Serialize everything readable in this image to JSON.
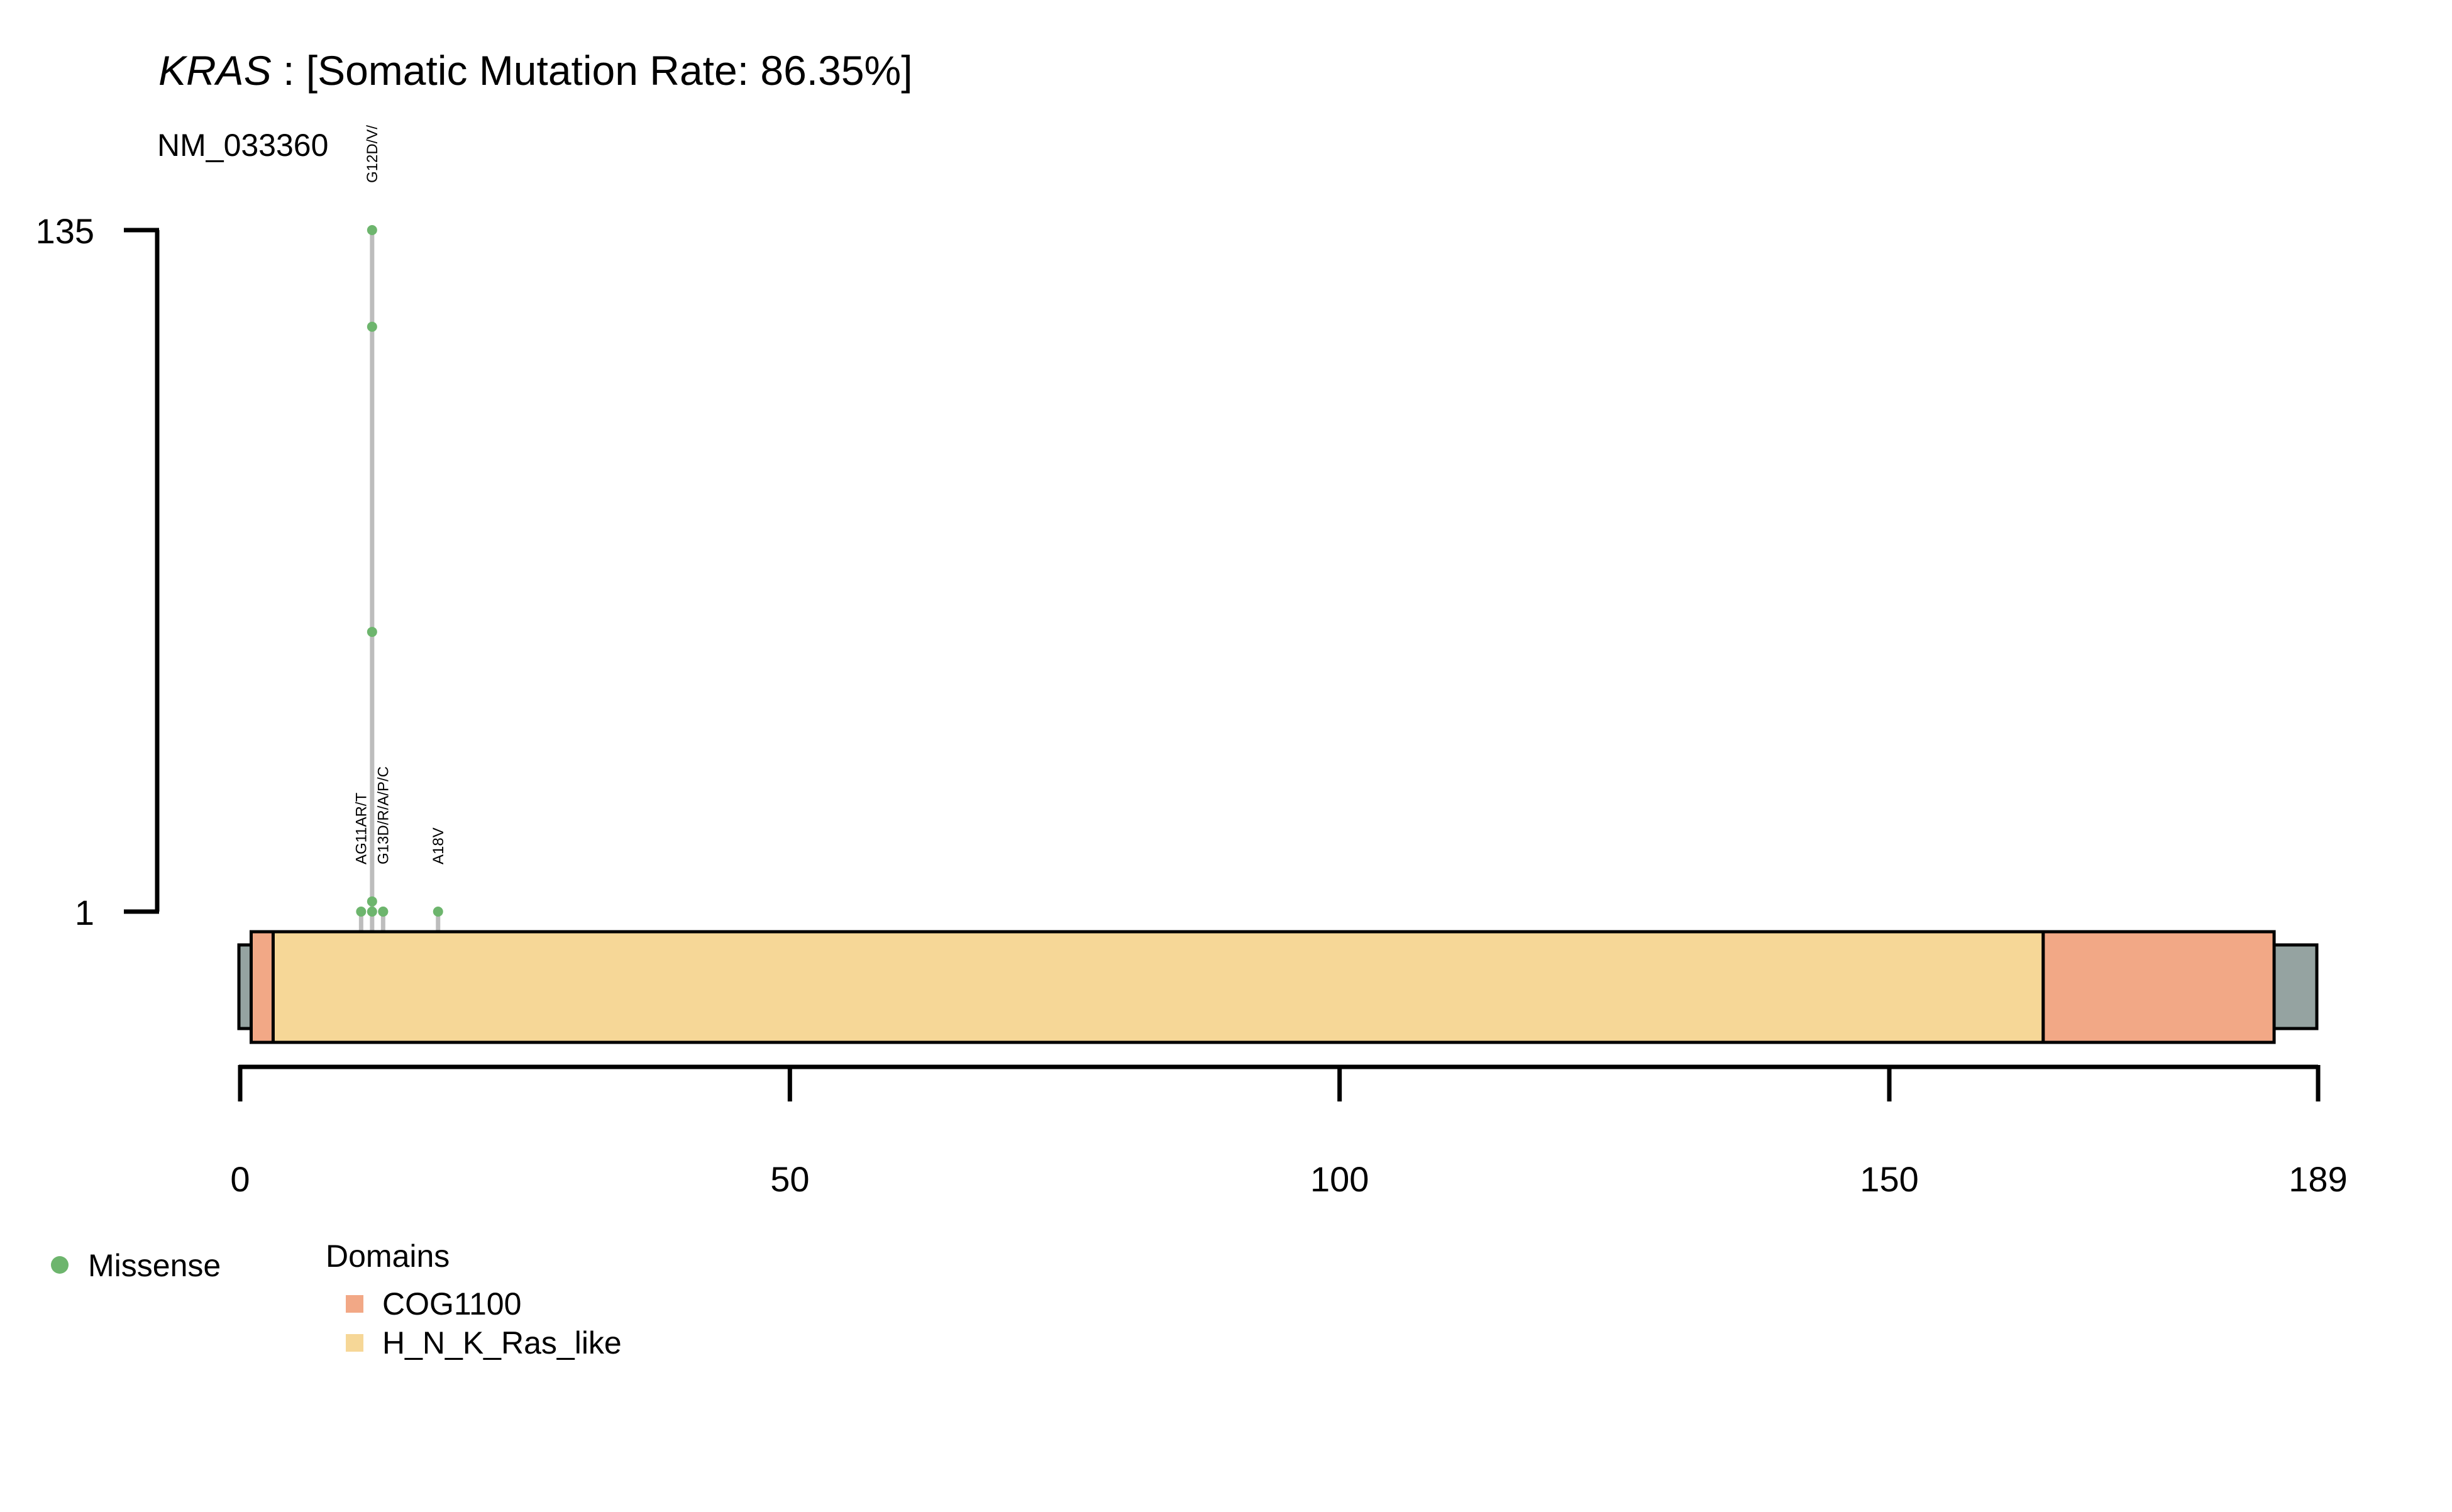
{
  "chart_data": {
    "type": "lollipop",
    "title": {
      "gene": "KRAS",
      "rest": " : [Somatic Mutation Rate: 86.35%]"
    },
    "transcript": "NM_033360",
    "protein_length": 189,
    "x_axis": {
      "ticks": [
        0,
        50,
        100,
        150,
        189
      ]
    },
    "y_axis": {
      "ticks": [
        "135",
        "1"
      ],
      "max": 135,
      "min": 1
    },
    "domains": [
      {
        "name": "COG1100",
        "start": 1,
        "end": 3,
        "color": "#F2A886"
      },
      {
        "name": "H_N_K_Ras_like",
        "start": 3,
        "end": 164,
        "color": "#F6D797"
      },
      {
        "name": "COG1100",
        "start": 164,
        "end": 185,
        "color": "#F2A886"
      }
    ],
    "protein_color": "#95A3A1",
    "mutations": [
      {
        "label": "AG11AR/T",
        "position": 11,
        "counts": [
          1
        ],
        "type": "Missense"
      },
      {
        "label": "G12D/V/",
        "position": 12,
        "counts": [
          1,
          3,
          56,
          116,
          135
        ],
        "type": "Missense"
      },
      {
        "label": "G13D/R/A/P/C",
        "position": 13,
        "counts": [
          1,
          1
        ],
        "type": "Missense"
      },
      {
        "label": "A18V",
        "position": 18,
        "counts": [
          1
        ],
        "type": "Missense"
      }
    ],
    "legend": {
      "mutation_types": [
        {
          "name": "Missense",
          "color": "#6DB56D"
        }
      ],
      "domains_title": "Domains",
      "domains": [
        {
          "name": "COG1100",
          "color": "#F2A886"
        },
        {
          "name": "H_N_K_Ras_like",
          "color": "#F6D797"
        }
      ]
    }
  }
}
